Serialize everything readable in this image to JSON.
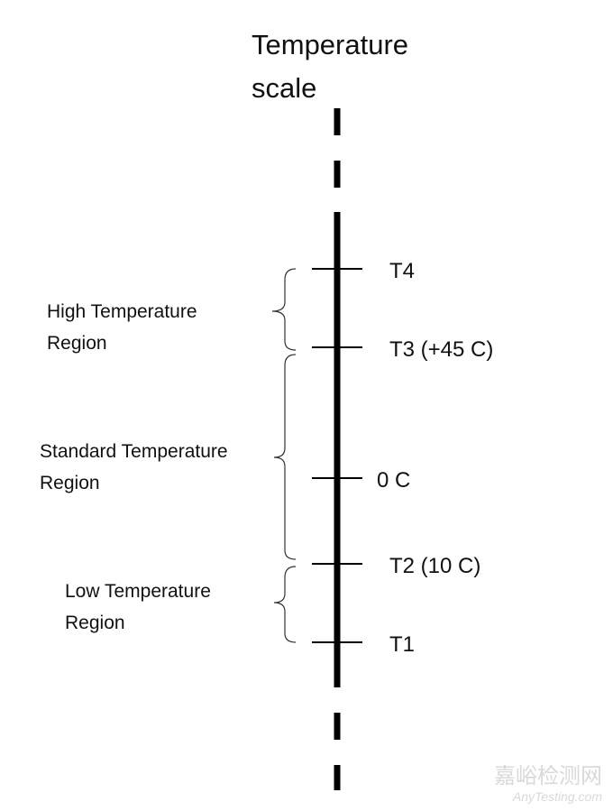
{
  "title": [
    "Temperature",
    "scale"
  ],
  "scale_marks": [
    {
      "label": "T4"
    },
    {
      "label": "T3 (+45 C)"
    },
    {
      "label": "0 C"
    },
    {
      "label": "T2 (10 C)"
    },
    {
      "label": "T1"
    }
  ],
  "regions": [
    {
      "label": [
        "High Temperature",
        "Region"
      ]
    },
    {
      "label": [
        "Standard Temperature",
        "Region"
      ]
    },
    {
      "label": [
        "Low Temperature",
        "Region"
      ]
    }
  ],
  "watermark": {
    "name": "嘉峪检测网",
    "site": "AnyTesting.com"
  }
}
